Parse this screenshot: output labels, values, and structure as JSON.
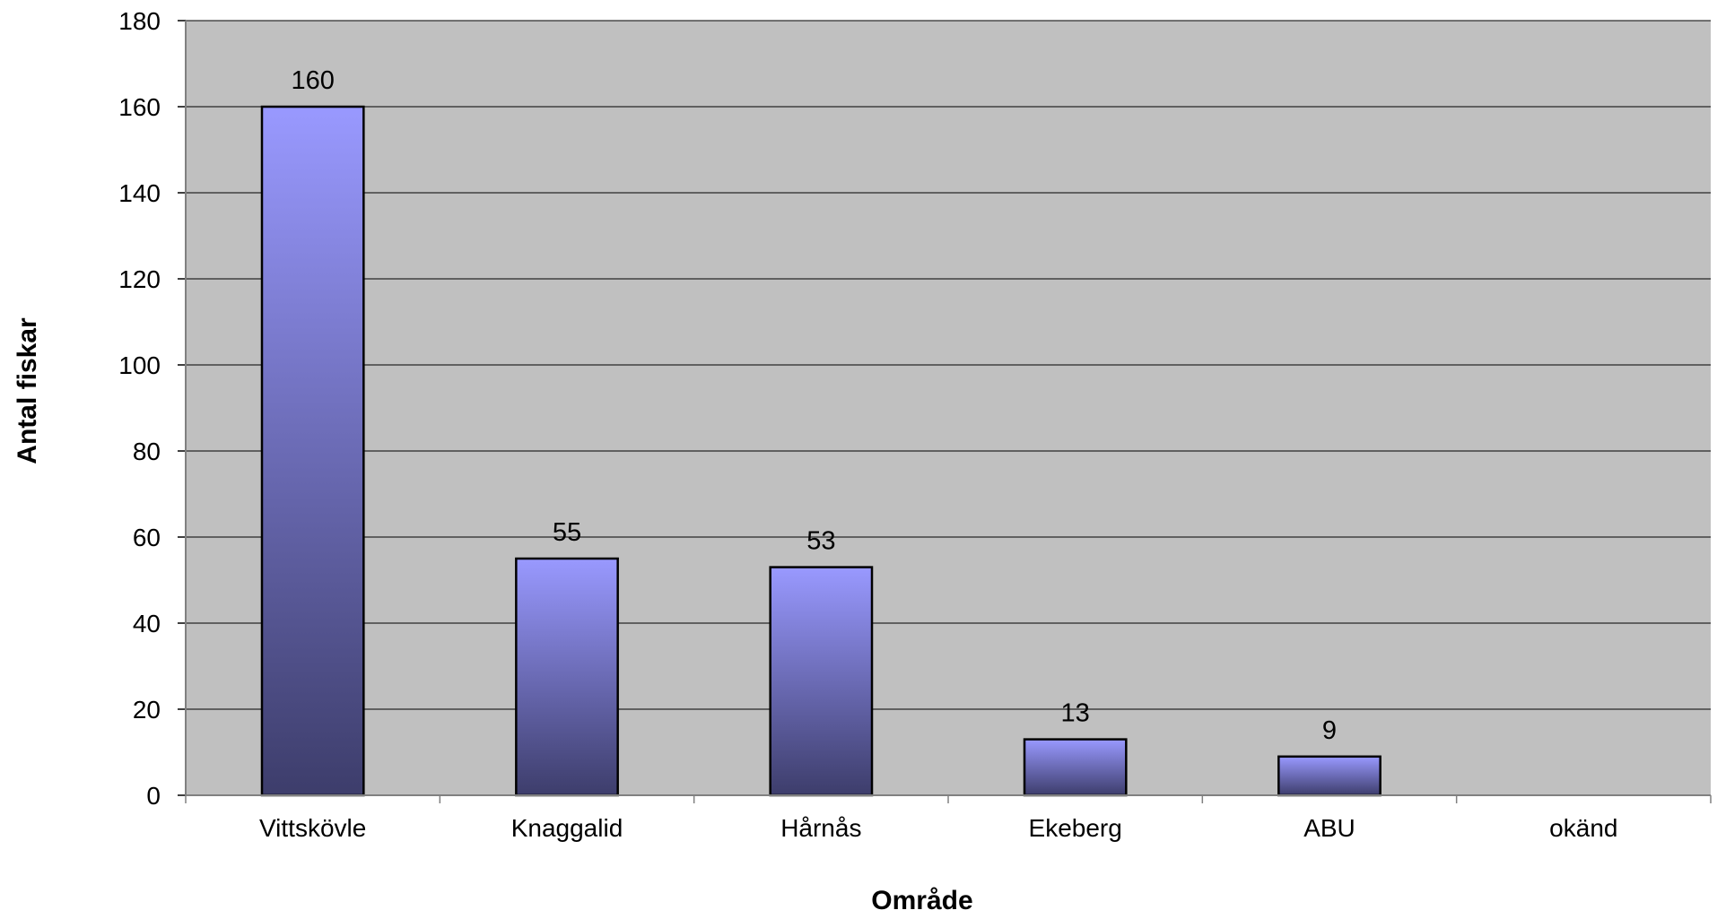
{
  "chart_data": {
    "type": "bar",
    "title": "",
    "xlabel": "Område",
    "ylabel": "Antal fiskar",
    "categories": [
      "Vittskövle",
      "Knaggalid",
      "Hårnås",
      "Ekeberg",
      "ABU",
      "okänd"
    ],
    "values": [
      160,
      55,
      53,
      13,
      9,
      0
    ],
    "data_labels": [
      "160",
      "55",
      "53",
      "13",
      "9",
      ""
    ],
    "ylim": [
      0,
      180
    ],
    "yticks": [
      "0",
      "20",
      "40",
      "60",
      "80",
      "100",
      "120",
      "140",
      "160",
      "180"
    ],
    "grid": true,
    "legend": "none",
    "colors": {
      "plot_bg": "#c0c0c0",
      "bar_top": "#9999ff",
      "bar_bottom": "#3d3d6b",
      "gridline": "#000000",
      "bar_edge": "#000000"
    }
  }
}
